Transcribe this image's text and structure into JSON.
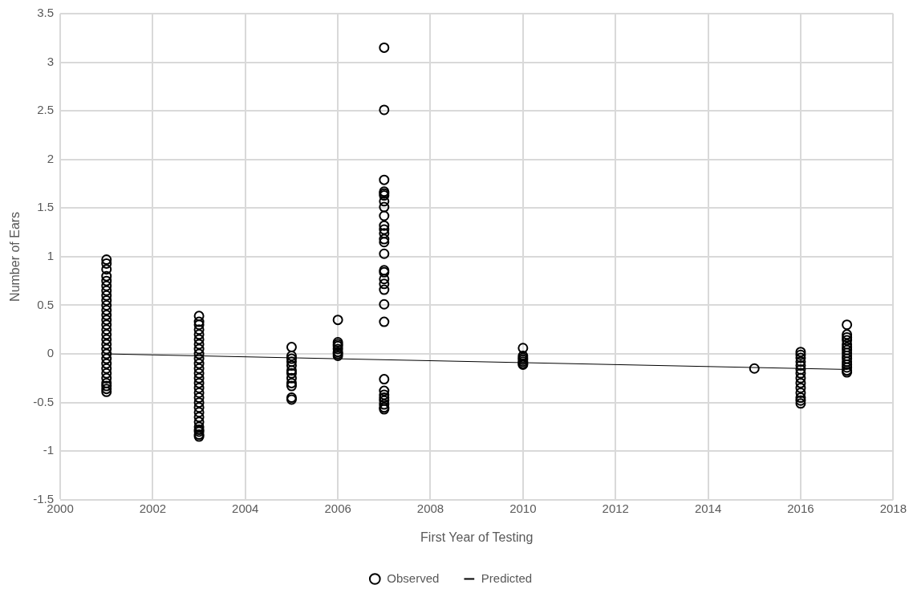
{
  "chart_data": {
    "type": "scatter",
    "xlabel": "First Year of Testing",
    "ylabel": "Number of Ears",
    "xlim": [
      2000,
      2018
    ],
    "xticks": [
      2000,
      2002,
      2004,
      2006,
      2008,
      2010,
      2012,
      2014,
      2016,
      2018
    ],
    "ylim": [
      -1.5,
      3.5
    ],
    "yticks": [
      -1.5,
      -1,
      -0.5,
      0,
      0.5,
      1,
      1.5,
      2,
      2.5,
      3,
      3.5
    ],
    "grid": true,
    "legend": "bottom",
    "marker": "circle",
    "series": [
      {
        "name": "Observed",
        "color": "#000000",
        "x": [
          2001,
          2001,
          2001,
          2001,
          2001,
          2001,
          2001,
          2001,
          2001,
          2001,
          2001,
          2001,
          2001,
          2001,
          2001,
          2001,
          2001,
          2001,
          2001,
          2001,
          2001,
          2001,
          2001,
          2001,
          2001,
          2001,
          2001,
          2001,
          2001,
          2003,
          2003,
          2003,
          2003,
          2003,
          2003,
          2003,
          2003,
          2003,
          2003,
          2003,
          2003,
          2003,
          2003,
          2003,
          2003,
          2003,
          2003,
          2003,
          2003,
          2003,
          2003,
          2003,
          2003,
          2003,
          2003,
          2003,
          2003,
          2005,
          2005,
          2005,
          2005,
          2005,
          2005,
          2005,
          2005,
          2005,
          2005,
          2005,
          2005,
          2006,
          2006,
          2006,
          2006,
          2006,
          2006,
          2006,
          2006,
          2007,
          2007,
          2007,
          2007,
          2007,
          2007,
          2007,
          2007,
          2007,
          2007,
          2007,
          2007,
          2007,
          2007,
          2007,
          2007,
          2007,
          2007,
          2007,
          2007,
          2007,
          2007,
          2007,
          2007,
          2007,
          2007,
          2007,
          2007,
          2007,
          2007,
          2010,
          2010,
          2010,
          2010,
          2010,
          2010,
          2010,
          2015,
          2016,
          2016,
          2016,
          2016,
          2016,
          2016,
          2016,
          2016,
          2016,
          2016,
          2016,
          2016,
          2016,
          2016,
          2017,
          2017,
          2017,
          2017,
          2017,
          2017,
          2017,
          2017,
          2017,
          2017,
          2017,
          2017,
          2017,
          2017,
          2017
        ],
        "values": [
          0.97,
          0.93,
          0.87,
          0.8,
          0.75,
          0.7,
          0.65,
          0.6,
          0.55,
          0.5,
          0.45,
          0.4,
          0.35,
          0.3,
          0.25,
          0.2,
          0.15,
          0.1,
          0.05,
          0,
          -0.05,
          -0.1,
          -0.15,
          -0.2,
          -0.25,
          -0.3,
          -0.33,
          -0.36,
          -0.39,
          0.39,
          0.33,
          0.3,
          0.25,
          0.2,
          0.15,
          0.1,
          0.05,
          0,
          -0.05,
          -0.1,
          -0.15,
          -0.2,
          -0.25,
          -0.3,
          -0.35,
          -0.4,
          -0.45,
          -0.5,
          -0.55,
          -0.6,
          -0.65,
          -0.7,
          -0.75,
          -0.8,
          -0.83,
          -0.85,
          -0.78,
          0.07,
          -0.02,
          -0.05,
          -0.08,
          -0.12,
          -0.17,
          -0.2,
          -0.25,
          -0.3,
          -0.33,
          -0.45,
          -0.47,
          0.35,
          0.12,
          0.1,
          0.08,
          0.05,
          0.02,
          0,
          -0.02,
          3.15,
          2.51,
          1.79,
          1.67,
          1.65,
          1.63,
          1.57,
          1.51,
          1.42,
          1.32,
          1.28,
          1.24,
          1.18,
          1.15,
          1.03,
          0.86,
          0.84,
          0.77,
          0.72,
          0.66,
          0.51,
          0.33,
          -0.26,
          -0.38,
          -0.42,
          -0.45,
          -0.48,
          -0.52,
          -0.55,
          -0.57,
          0.06,
          -0.02,
          -0.04,
          -0.06,
          -0.08,
          -0.1,
          -0.11,
          -0.15,
          0.02,
          -0.01,
          -0.04,
          -0.08,
          -0.12,
          -0.16,
          -0.2,
          -0.25,
          -0.3,
          -0.35,
          -0.4,
          -0.45,
          -0.48,
          -0.51,
          0.3,
          0.2,
          0.17,
          0.14,
          0.1,
          0.07,
          0.04,
          0.01,
          -0.02,
          -0.05,
          -0.08,
          -0.11,
          -0.14,
          -0.17,
          -0.19
        ]
      },
      {
        "name": "Predicted",
        "color": "#000000",
        "type": "line",
        "marker": "none",
        "x": [
          2001,
          2017
        ],
        "values": [
          0,
          -0.16
        ]
      }
    ]
  }
}
